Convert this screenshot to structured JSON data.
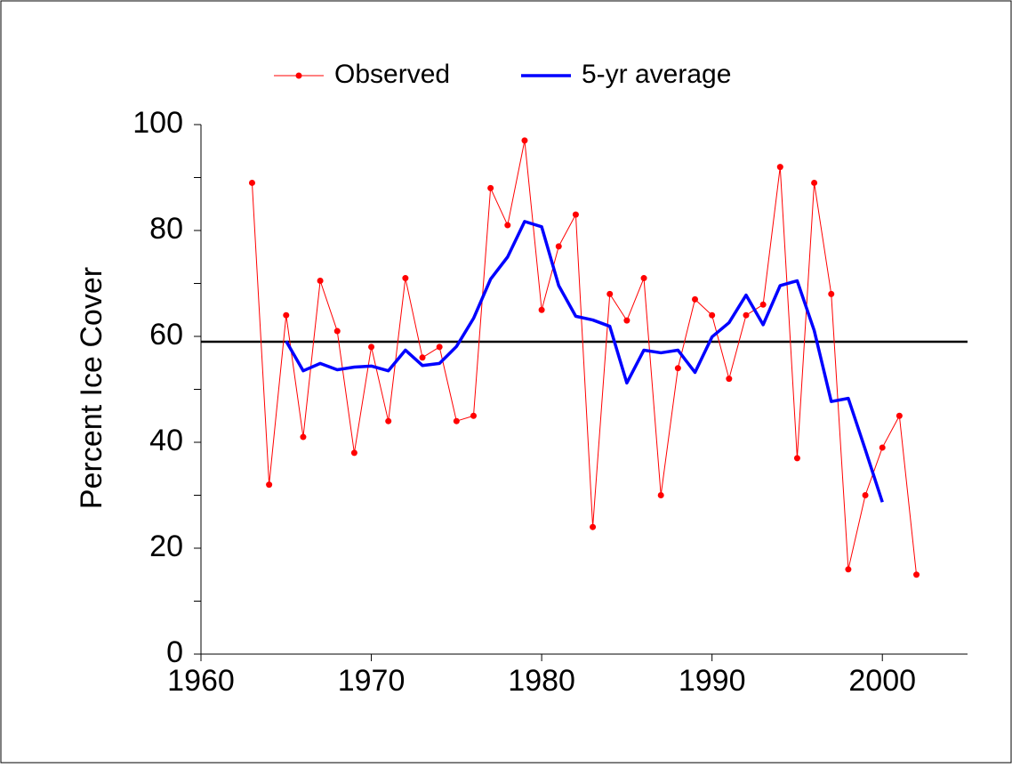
{
  "chart_data": {
    "type": "line",
    "y_label": "Percent Ice Cover",
    "series": [
      {
        "name": "Observed",
        "color": "#ff0000",
        "markers": true,
        "x": [
          1963,
          1964,
          1965,
          1966,
          1967,
          1968,
          1969,
          1970,
          1971,
          1972,
          1973,
          1974,
          1975,
          1976,
          1977,
          1978,
          1979,
          1980,
          1981,
          1982,
          1983,
          1984,
          1985,
          1986,
          1987,
          1988,
          1989,
          1990,
          1991,
          1992,
          1993,
          1994,
          1995,
          1996,
          1997,
          1998,
          1999,
          2000,
          2001,
          2002
        ],
        "values": [
          89,
          32,
          64,
          41,
          70.5,
          61,
          38,
          58,
          44,
          71,
          56,
          58,
          44,
          45,
          88,
          81,
          97,
          65,
          77,
          83,
          24,
          68,
          63,
          71,
          30,
          54,
          67,
          64,
          52,
          64,
          66,
          92,
          37,
          89,
          68,
          16,
          30,
          39,
          45,
          15
        ]
      },
      {
        "name": "5-yr average",
        "color": "#0000ff",
        "markers": false,
        "x": [
          1965,
          1966,
          1967,
          1968,
          1969,
          1970,
          1971,
          1972,
          1973,
          1974,
          1975,
          1976,
          1977,
          1978,
          1979,
          1980,
          1981,
          1982,
          1983,
          1984,
          1985,
          1986,
          1987,
          1988,
          1989,
          1990,
          1991,
          1992,
          1993,
          1994,
          1995,
          1996,
          1997,
          1998,
          1999,
          2000
        ],
        "values": [
          59.1,
          53.5,
          54.9,
          53.7,
          54.2,
          54.4,
          53.5,
          57.4,
          54.5,
          54.9,
          58.1,
          63.4,
          70.8,
          75,
          81.7,
          80.7,
          69.6,
          63.8,
          63.1,
          61.9,
          51.2,
          57.4,
          56.9,
          57.4,
          53.2,
          59.9,
          62.6,
          67.8,
          62.2,
          69.6,
          70.5,
          61.1,
          47.7,
          48.3,
          38.6,
          28.7
        ]
      }
    ],
    "reference_line": {
      "value": 59,
      "color": "#000000"
    },
    "xlim": [
      1960,
      2005
    ],
    "xticks": [
      1960,
      1970,
      1980,
      1990,
      2000
    ],
    "ylim": [
      0,
      100
    ],
    "yticks": [
      0,
      20,
      40,
      60,
      80,
      100
    ],
    "yminor_ticks": [
      10,
      30,
      50,
      70,
      90
    ],
    "legend": "top"
  }
}
